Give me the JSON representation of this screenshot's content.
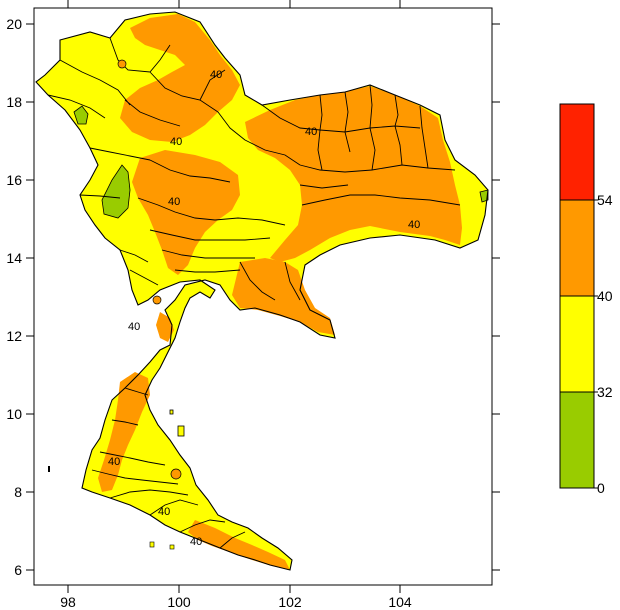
{
  "map": {
    "x_ticks": [
      "98",
      "100",
      "102",
      "104"
    ],
    "y_ticks": [
      "6",
      "8",
      "10",
      "12",
      "14",
      "16",
      "18",
      "20"
    ],
    "contour_labels": [
      "40",
      "40",
      "40",
      "40",
      "40",
      "40",
      "40",
      "40",
      "40"
    ]
  },
  "legend": {
    "bins": [
      {
        "from": 0,
        "to": 32,
        "color": "#99cc00"
      },
      {
        "from": 32,
        "to": 40,
        "color": "#ffff00"
      },
      {
        "from": 40,
        "to": 54,
        "color": "#ff9900"
      },
      {
        "from": 54,
        "to": null,
        "color": "#ff2200"
      }
    ],
    "labels": [
      "0",
      "32",
      "40",
      "54"
    ]
  },
  "colors": {
    "green": "#99cc00",
    "yellow": "#ffff00",
    "orange": "#ff9900",
    "red": "#ff2200"
  }
}
